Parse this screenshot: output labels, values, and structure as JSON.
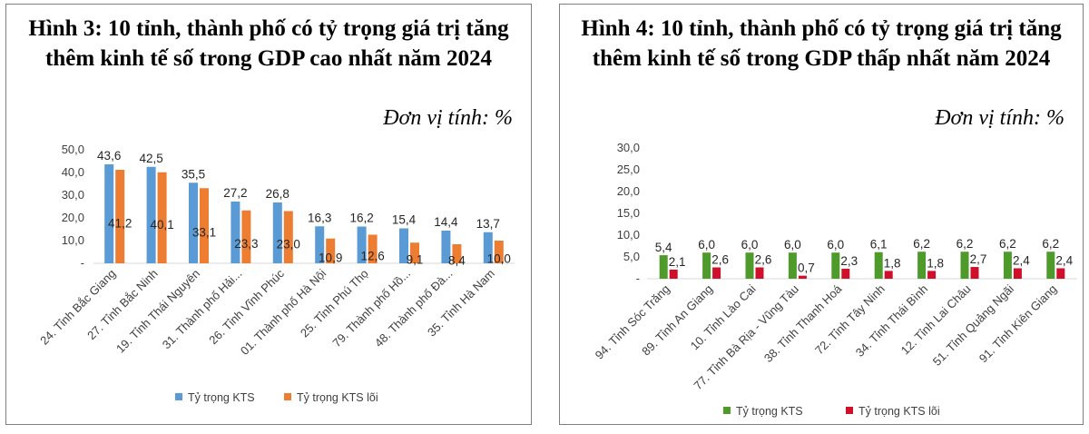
{
  "chart_data": [
    {
      "type": "bar",
      "title": "Hình 3: 10 tỉnh, thành phố có tỷ trọng giá trị tăng thêm kinh tế số trong GDP cao nhất năm 2024",
      "unit_label": "Đơn vị tính: %",
      "categories": [
        "24. Tỉnh Bắc Giang",
        "27. Tỉnh Bắc Ninh",
        "19. Tỉnh Thái Nguyên",
        "31. Thành phố Hải...",
        "26. Tỉnh Vĩnh Phúc",
        "01. Thành phố Hà Nội",
        "25. Tỉnh Phú Thọ",
        "79. Thành phố Hồ...",
        "48. Thành phố Đà...",
        "35. Tỉnh Hà Nam"
      ],
      "series": [
        {
          "name": "Tỷ trọng KTS",
          "color": "#5b9bd5",
          "values": [
            43.6,
            42.5,
            35.5,
            27.2,
            26.8,
            16.3,
            16.2,
            15.4,
            14.4,
            13.7
          ],
          "labels": [
            "43,6",
            "42,5",
            "35,5",
            "27,2",
            "26,8",
            "16,3",
            "16,2",
            "15,4",
            "14,4",
            "13,7"
          ]
        },
        {
          "name": "Tỷ trọng KTS lõi",
          "color": "#ed7d31",
          "values": [
            41.2,
            40.1,
            33.1,
            23.3,
            23.0,
            10.9,
            12.6,
            9.1,
            8.4,
            10.0
          ],
          "labels": [
            "41,2",
            "40,1",
            "33,1",
            "23,3",
            "23,0",
            "10,9",
            "12,6",
            "9,1",
            "8,4",
            "10,0"
          ]
        }
      ],
      "y_ticks": [
        "-",
        "10,0",
        "20,0",
        "30,0",
        "40,0",
        "50,0"
      ],
      "ylim": [
        0,
        50
      ],
      "grid": false,
      "legend": "bottom"
    },
    {
      "type": "bar",
      "title": "Hình 4: 10 tỉnh, thành phố có tỷ trọng giá trị tăng thêm kinh tế số trong GDP thấp nhất năm 2024",
      "unit_label": "Đơn vị tính: %",
      "categories": [
        "94. Tỉnh Sóc Trăng",
        "89. Tỉnh An Giang",
        "10. Tỉnh Lào Cai",
        "77. Tỉnh Bà Rịa - Vũng Tàu",
        "38. Tỉnh Thanh Hoá",
        "72. Tỉnh Tây Ninh",
        "34. Tỉnh Thái Bình",
        "12. Tỉnh Lai Châu",
        "51. Tỉnh Quảng Ngãi",
        "91. Tỉnh Kiên Giang"
      ],
      "series": [
        {
          "name": "Tỷ trọng KTS",
          "color": "#4e9a2a",
          "values": [
            5.4,
            6.0,
            6.0,
            6.0,
            6.0,
            6.1,
            6.2,
            6.2,
            6.2,
            6.2
          ],
          "labels": [
            "5,4",
            "6,0",
            "6,0",
            "6,0",
            "6,0",
            "6,1",
            "6,2",
            "6,2",
            "6,2",
            "6,2"
          ]
        },
        {
          "name": "Tỷ trọng KTS lõi",
          "color": "#d0102a",
          "values": [
            2.1,
            2.6,
            2.6,
            0.7,
            2.3,
            1.8,
            1.8,
            2.7,
            2.4,
            2.4
          ],
          "labels": [
            "2,1",
            "2,6",
            "2,6",
            "0,7",
            "2,3",
            "1,8",
            "1,8",
            "2,7",
            "2,4",
            "2,4"
          ]
        }
      ],
      "y_ticks": [
        "-",
        "5,0",
        "10,0",
        "15,0",
        "20,0",
        "25,0",
        "30,0"
      ],
      "ylim": [
        0,
        30
      ],
      "grid": false,
      "legend": "bottom"
    }
  ]
}
